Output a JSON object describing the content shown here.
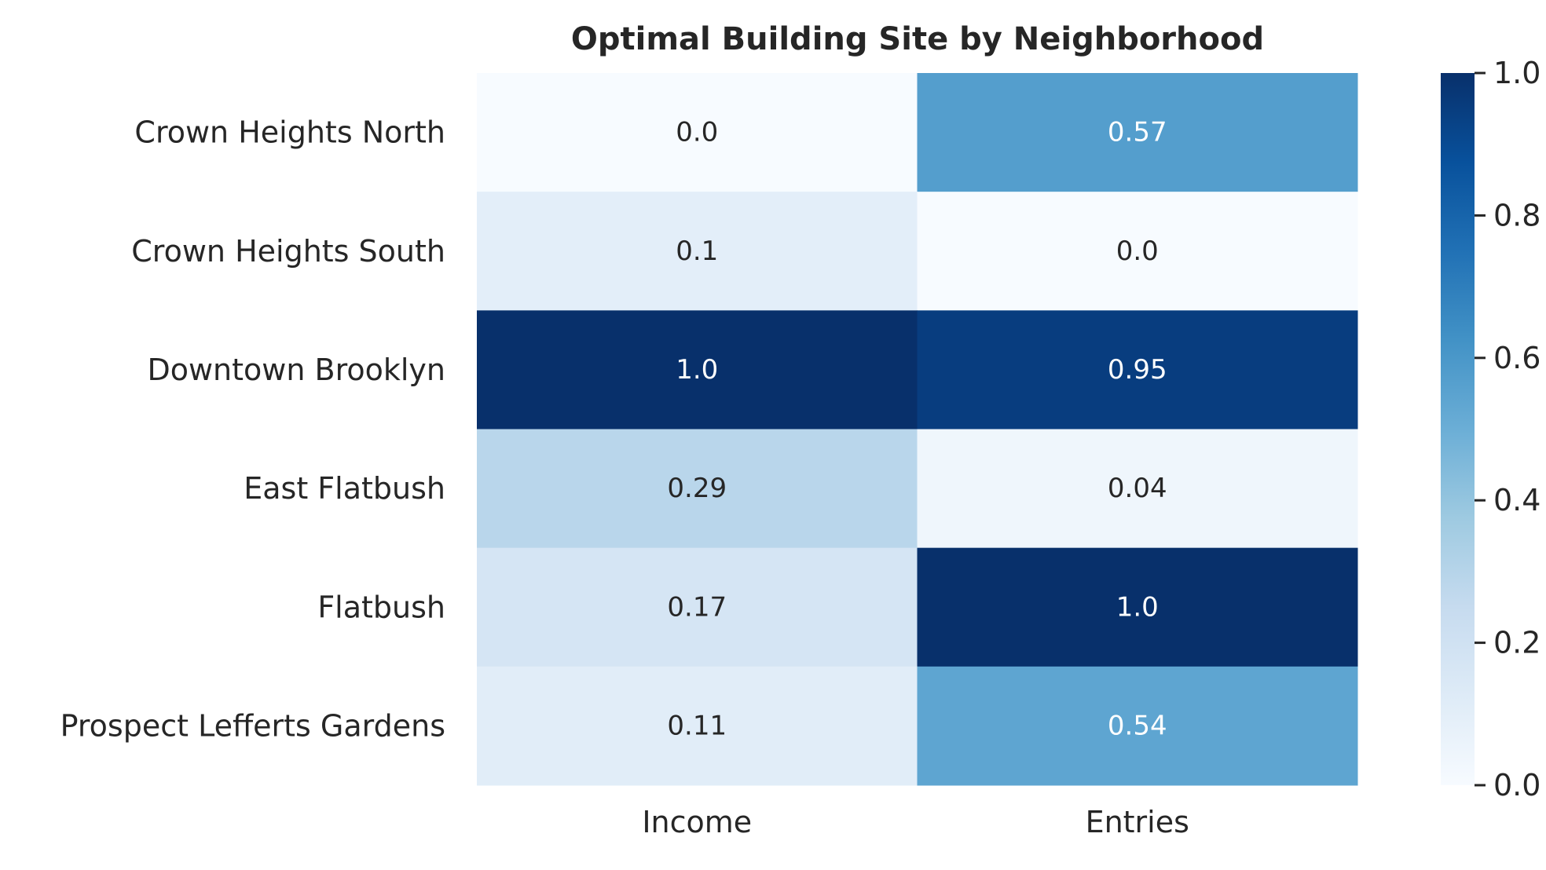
{
  "chart_data": {
    "type": "heatmap",
    "title": "Optimal Building Site by Neighborhood",
    "rows": [
      "Crown Heights North",
      "Crown Heights South",
      "Downtown Brooklyn",
      "East Flatbush",
      "Flatbush",
      "Prospect Lefferts Gardens"
    ],
    "columns": [
      "Income",
      "Entries"
    ],
    "values": [
      [
        0.0,
        0.57
      ],
      [
        0.1,
        0.0
      ],
      [
        1.0,
        0.95
      ],
      [
        0.29,
        0.04
      ],
      [
        0.17,
        1.0
      ],
      [
        0.11,
        0.54
      ]
    ],
    "value_labels": [
      [
        "0.0",
        "0.57"
      ],
      [
        "0.1",
        "0.0"
      ],
      [
        "1.0",
        "0.95"
      ],
      [
        "0.29",
        "0.04"
      ],
      [
        "0.17",
        "1.0"
      ],
      [
        "0.11",
        "0.54"
      ]
    ],
    "colormap": "Blues",
    "vmin": 0.0,
    "vmax": 1.0,
    "colorbar": {
      "ticks": [
        0.0,
        0.2,
        0.4,
        0.6,
        0.8,
        1.0
      ],
      "tick_labels": [
        "0.0",
        "0.2",
        "0.4",
        "0.6",
        "0.8",
        "1.0"
      ]
    },
    "annotation_colors": {
      "dark_text": "#262626",
      "light_text": "#ffffff"
    }
  }
}
